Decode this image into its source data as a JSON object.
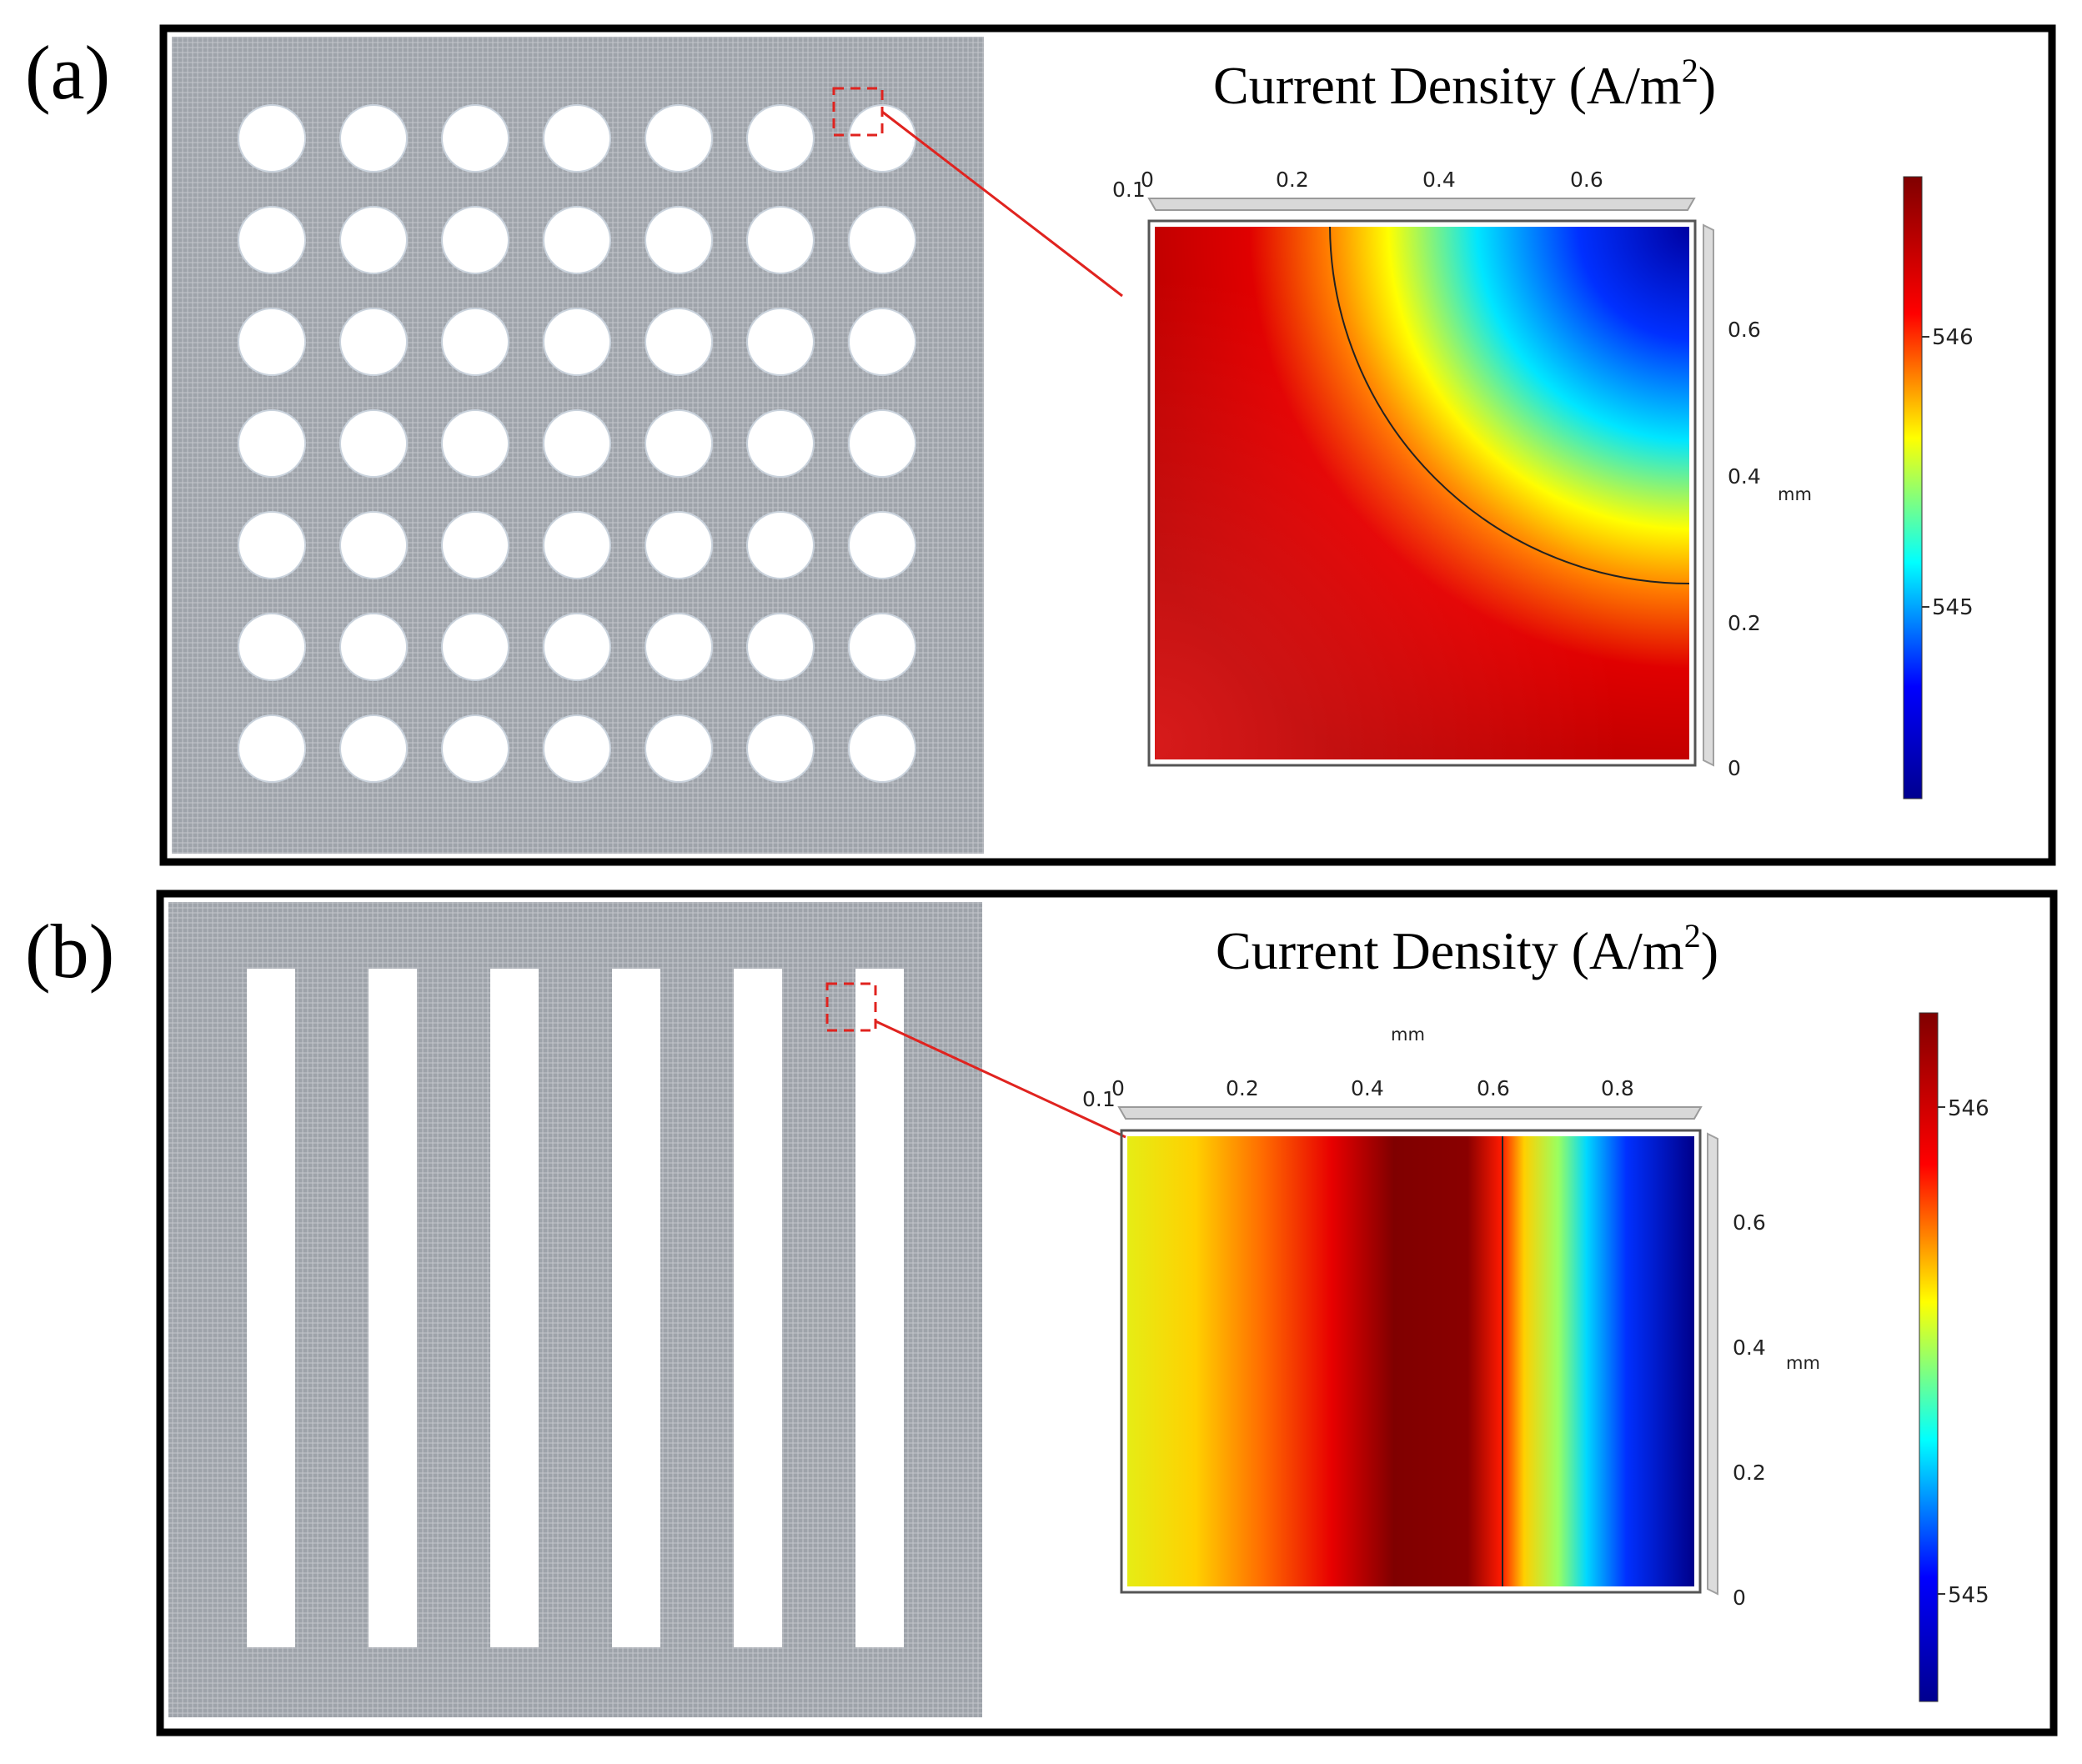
{
  "panels": [
    {
      "label": "(a)",
      "pattern": "circular-holes",
      "grid": {
        "rows": 7,
        "cols": 7
      },
      "title_main": "Current Density (A/m",
      "title_sup": "2",
      "title_close": ")",
      "inset": {
        "x_ticks": [
          "0",
          "0.2",
          "0.4",
          "0.6"
        ],
        "x_corner_label": "0.1",
        "y_ticks": [
          "0.6",
          "0.4",
          "0.2",
          "0"
        ],
        "y_unit": "mm"
      },
      "colorbar": {
        "ticks": [
          "546",
          "545"
        ]
      }
    },
    {
      "label": "(b)",
      "pattern": "vertical-slots",
      "slot_count": 6,
      "title_main": "Current Density (A/m",
      "title_sup": "2",
      "title_close": ")",
      "inset": {
        "x_unit": "mm",
        "x_ticks": [
          "0",
          "0.2",
          "0.4",
          "0.6",
          "0.8"
        ],
        "x_corner_label": "0.1",
        "y_ticks": [
          "0.6",
          "0.4",
          "0.2",
          "0"
        ],
        "y_unit": "mm"
      },
      "colorbar": {
        "ticks": [
          "546",
          "545"
        ]
      }
    }
  ],
  "colors": {
    "frame": "#000000",
    "mesh": "#a6aab0",
    "callout": "#e0231f",
    "colormap": [
      "#00008f",
      "#0000ff",
      "#00ffff",
      "#ffff00",
      "#ff0000",
      "#800000"
    ]
  }
}
